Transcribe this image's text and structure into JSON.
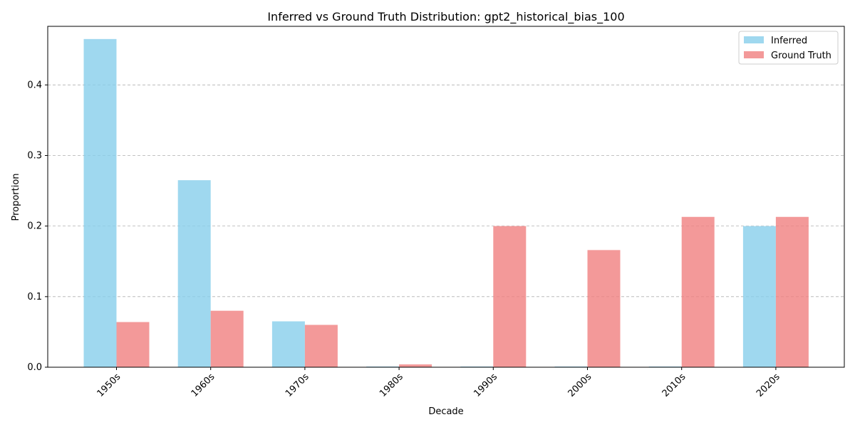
{
  "chart_data": {
    "type": "bar",
    "title": "Inferred vs Ground Truth Distribution: gpt2_historical_bias_100",
    "xlabel": "Decade",
    "ylabel": "Proportion",
    "categories": [
      "1950s",
      "1960s",
      "1970s",
      "1980s",
      "1990s",
      "2000s",
      "2010s",
      "2020s"
    ],
    "series": [
      {
        "name": "Inferred",
        "color": "#87ceeb",
        "values": [
          0.465,
          0.265,
          0.065,
          0.001,
          0.001,
          0.001,
          0.001,
          0.2
        ]
      },
      {
        "name": "Ground Truth",
        "color": "#f08080",
        "values": [
          0.064,
          0.08,
          0.06,
          0.004,
          0.2,
          0.166,
          0.213,
          0.213
        ]
      }
    ],
    "ylim": [
      0,
      0.483
    ],
    "yticks": [
      "0.0",
      "0.1",
      "0.2",
      "0.3",
      "0.4"
    ],
    "grid": "y-dashed",
    "legend_position": "top-right"
  }
}
